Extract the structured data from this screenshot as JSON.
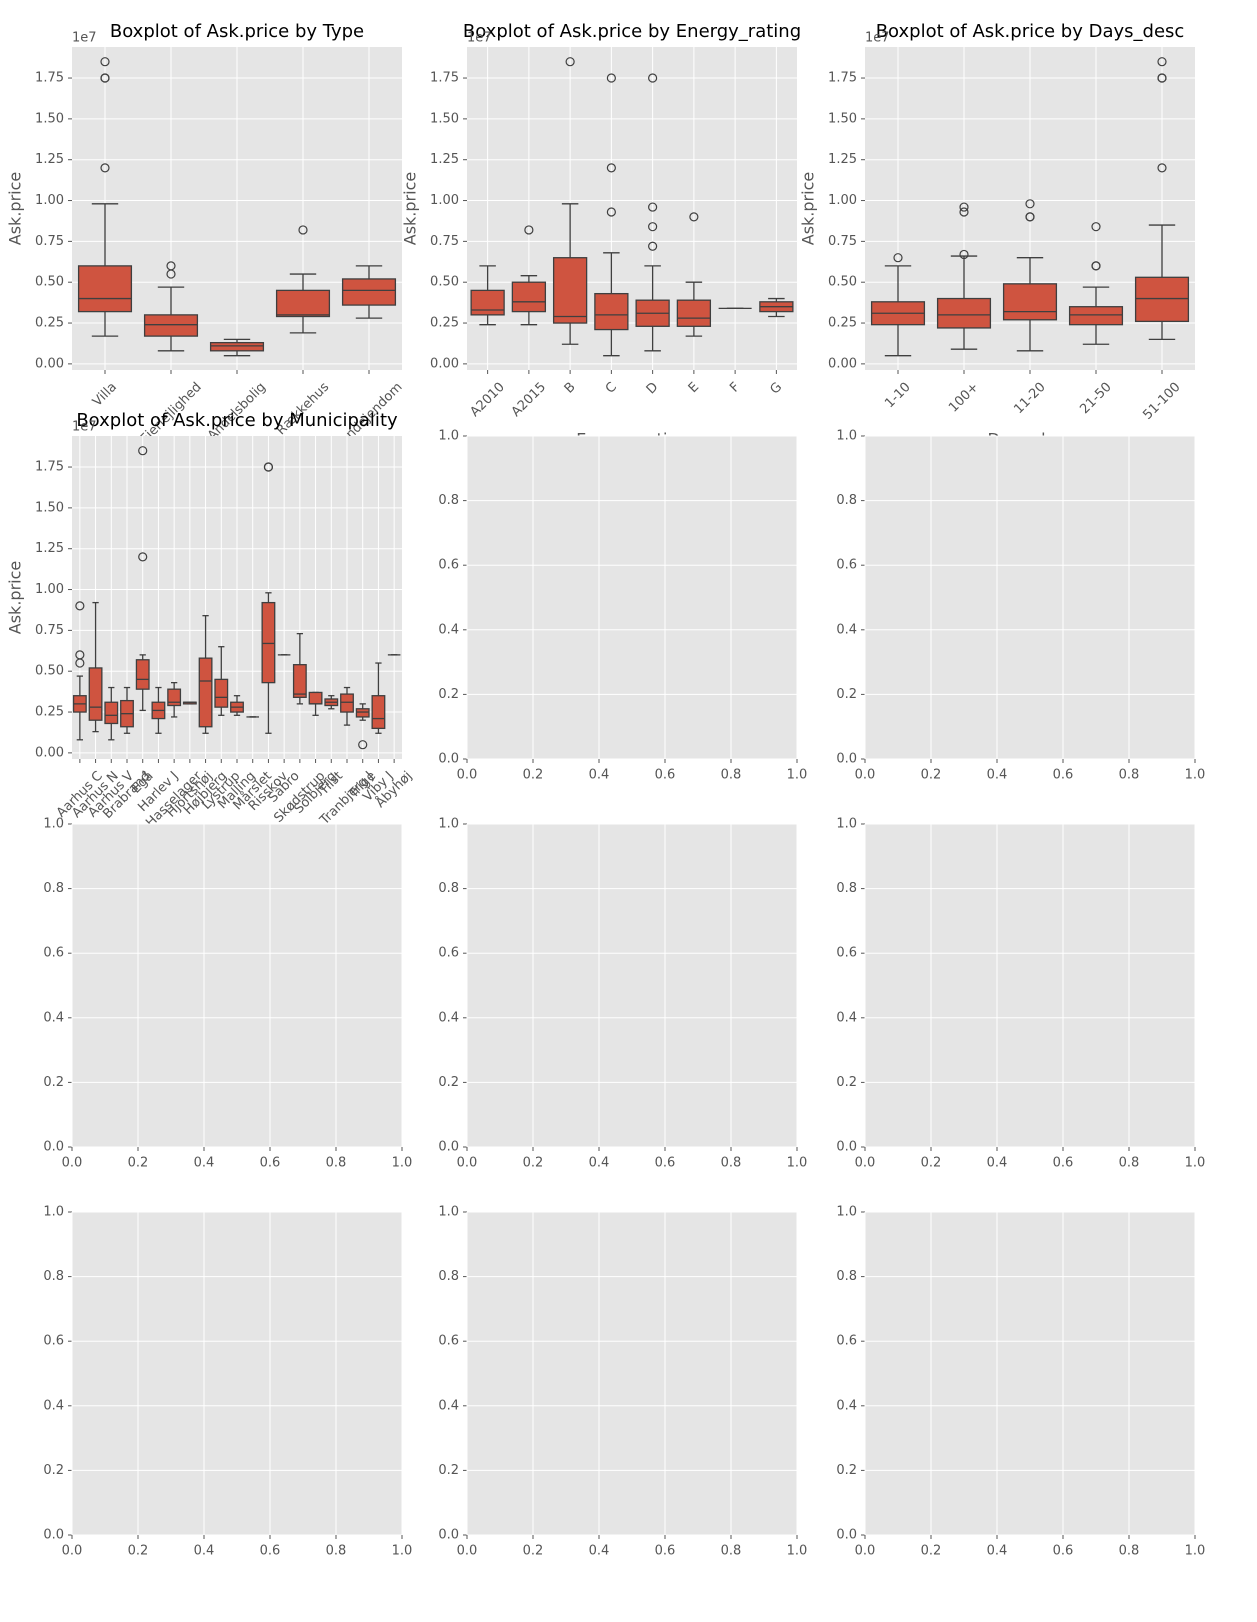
{
  "chart_data": [
    {
      "type": "box",
      "title": "Boxplot of Ask.price by Type",
      "ylabel": "Ask.price",
      "y_offset_label": "1e7",
      "color": "#cf5440",
      "grid": true,
      "categories": [
        "Villa",
        "Ejerlejlighed",
        "Andelsbolig",
        "Rækkehus",
        "Landejendom"
      ],
      "whisker_low": [
        0.17,
        0.08,
        0.05,
        0.19,
        0.28
      ],
      "q1": [
        0.32,
        0.17,
        0.08,
        0.29,
        0.36
      ],
      "median": [
        0.4,
        0.24,
        0.11,
        0.3,
        0.45
      ],
      "q3": [
        0.6,
        0.3,
        0.13,
        0.45,
        0.52
      ],
      "whisker_high": [
        0.98,
        0.47,
        0.15,
        0.55,
        0.6
      ],
      "outliers": [
        [
          1.85,
          1.75,
          1.75,
          1.2
        ],
        [
          0.6,
          0.55
        ],
        [],
        [
          0.82
        ],
        []
      ],
      "ylim": [
        -0.0375,
        1.94
      ],
      "yticks": [
        {
          "value": 0,
          "label": "0.00"
        },
        0.25,
        {
          "value": 0.5,
          "label": "0.50"
        },
        0.75,
        {
          "value": 1,
          "label": "1.00"
        },
        1.25,
        {
          "value": 1.5,
          "label": "1.50"
        },
        1.75
      ]
    },
    {
      "type": "box",
      "title": "Boxplot of Ask.price by Energy_rating",
      "xlabel": "Energy_rating",
      "ylabel": "Ask.price",
      "y_offset_label": "1e7",
      "color": "#cf5440",
      "grid": true,
      "categories": [
        "A2010",
        "A2015",
        "B",
        "C",
        "D",
        "E",
        "F",
        "G"
      ],
      "whisker_low": [
        0.24,
        0.24,
        0.12,
        0.05,
        0.08,
        0.17,
        0.34,
        0.29
      ],
      "q1": [
        0.3,
        0.32,
        0.25,
        0.21,
        0.23,
        0.23,
        0.34,
        0.32
      ],
      "median": [
        0.33,
        0.38,
        0.29,
        0.3,
        0.31,
        0.28,
        0.34,
        0.35
      ],
      "q3": [
        0.45,
        0.5,
        0.65,
        0.43,
        0.39,
        0.39,
        0.34,
        0.38
      ],
      "whisker_high": [
        0.6,
        0.54,
        0.98,
        0.68,
        0.6,
        0.5,
        0.34,
        0.4
      ],
      "outliers": [
        [],
        [
          0.82
        ],
        [
          1.85
        ],
        [
          1.75,
          1.2,
          0.93
        ],
        [
          1.75,
          0.96,
          0.84,
          0.72
        ],
        [
          0.9
        ],
        [],
        []
      ],
      "ylim": [
        -0.0375,
        1.94
      ],
      "yticks": [
        {
          "value": 0,
          "label": "0.00"
        },
        0.25,
        {
          "value": 0.5,
          "label": "0.50"
        },
        0.75,
        {
          "value": 1,
          "label": "1.00"
        },
        1.25,
        {
          "value": 1.5,
          "label": "1.50"
        },
        1.75
      ]
    },
    {
      "type": "box",
      "title": "Boxplot of Ask.price by Days_desc",
      "xlabel": "Days_desc",
      "ylabel": "Ask.price",
      "y_offset_label": "1e7",
      "color": "#cf5440",
      "grid": true,
      "categories": [
        "1-10",
        "100+",
        "11-20",
        "21-50",
        "51-100"
      ],
      "whisker_low": [
        0.05,
        0.09,
        0.08,
        0.12,
        0.15
      ],
      "q1": [
        0.24,
        0.22,
        0.27,
        0.24,
        0.26
      ],
      "median": [
        0.31,
        0.3,
        0.32,
        0.3,
        0.4
      ],
      "q3": [
        0.38,
        0.4,
        0.49,
        0.35,
        0.53
      ],
      "whisker_high": [
        0.6,
        0.66,
        0.65,
        0.47,
        0.85
      ],
      "outliers": [
        [
          0.65
        ],
        [
          0.96,
          0.93,
          0.67
        ],
        [
          0.98,
          0.9,
          0.9
        ],
        [
          0.84,
          0.6,
          0.6
        ],
        [
          1.85,
          1.75,
          1.75,
          1.2
        ]
      ],
      "ylim": [
        -0.0375,
        1.94
      ],
      "yticks": [
        {
          "value": 0,
          "label": "0.00"
        },
        0.25,
        {
          "value": 0.5,
          "label": "0.50"
        },
        0.75,
        {
          "value": 1,
          "label": "1.00"
        },
        1.25,
        {
          "value": 1.5,
          "label": "1.50"
        },
        1.75
      ]
    },
    {
      "type": "box",
      "title": "Boxplot of Ask.price by Municipality",
      "ylabel": "Ask.price",
      "y_offset_label": "1e7",
      "color": "#cf5440",
      "grid": true,
      "categories": [
        "Aarhus C",
        "Aarhus N",
        "Aarhus V",
        "Brabrand",
        "Egå",
        "Harlev J",
        "Hasselager",
        "Hjortshøj",
        "Højbjerg",
        "Lystrup",
        "Malling",
        "Mårslet",
        "Risskov",
        "Sabro",
        "Skødstrup",
        "Solbjerg",
        "Tilst",
        "Tranbjerg J",
        "Trige",
        "Viby J",
        "Åbyhøj"
      ],
      "whisker_low": [
        0.08,
        0.13,
        0.08,
        0.12,
        0.26,
        0.12,
        0.22,
        0.3,
        0.12,
        0.23,
        0.23,
        0.22,
        0.12,
        0.6,
        0.3,
        0.23,
        0.27,
        0.17,
        0.2,
        0.12,
        0.6
      ],
      "q1": [
        0.25,
        0.2,
        0.18,
        0.16,
        0.39,
        0.21,
        0.29,
        0.3,
        0.16,
        0.28,
        0.25,
        0.22,
        0.43,
        0.6,
        0.34,
        0.3,
        0.29,
        0.25,
        0.22,
        0.15,
        0.6
      ],
      "median": [
        0.3,
        0.28,
        0.23,
        0.24,
        0.45,
        0.26,
        0.31,
        0.31,
        0.44,
        0.34,
        0.28,
        0.22,
        0.67,
        0.6,
        0.36,
        0.3,
        0.31,
        0.31,
        0.25,
        0.21,
        0.6
      ],
      "q3": [
        0.35,
        0.52,
        0.31,
        0.32,
        0.57,
        0.31,
        0.39,
        0.31,
        0.58,
        0.45,
        0.31,
        0.22,
        0.92,
        0.6,
        0.54,
        0.37,
        0.33,
        0.36,
        0.27,
        0.35,
        0.6
      ],
      "whisker_high": [
        0.47,
        0.92,
        0.4,
        0.4,
        0.6,
        0.4,
        0.43,
        0.31,
        0.84,
        0.65,
        0.35,
        0.22,
        0.98,
        0.6,
        0.73,
        0.37,
        0.35,
        0.4,
        0.3,
        0.55,
        0.6
      ],
      "outliers": [
        [
          0.9,
          0.6,
          0.55
        ],
        [],
        [],
        [],
        [
          1.85,
          1.2
        ],
        [],
        [],
        [],
        [],
        [],
        [],
        [],
        [
          1.75,
          1.75
        ],
        [],
        [],
        [],
        [],
        [],
        [
          0.05
        ],
        [],
        []
      ],
      "ylim": [
        -0.0375,
        1.94
      ],
      "yticks": [
        {
          "value": 0,
          "label": "0.00"
        },
        0.25,
        {
          "value": 0.5,
          "label": "0.50"
        },
        0.75,
        {
          "value": 1,
          "label": "1.00"
        },
        1.25,
        {
          "value": 1.5,
          "label": "1.50"
        },
        1.75
      ]
    },
    {
      "type": "empty",
      "grid": true,
      "xlim": [
        0,
        1
      ],
      "ylim": [
        0,
        1
      ],
      "xticks": [
        {
          "value": 0,
          "label": "0.0"
        },
        0.2,
        0.4,
        0.6,
        0.8,
        {
          "value": 1,
          "label": "1.0"
        }
      ],
      "yticks": [
        {
          "value": 0,
          "label": "0.0"
        },
        0.2,
        0.4,
        0.6,
        0.8,
        {
          "value": 1,
          "label": "1.0"
        }
      ]
    },
    {
      "type": "empty",
      "grid": true,
      "xlim": [
        0,
        1
      ],
      "ylim": [
        0,
        1
      ],
      "xticks": [
        {
          "value": 0,
          "label": "0.0"
        },
        0.2,
        0.4,
        0.6,
        0.8,
        {
          "value": 1,
          "label": "1.0"
        }
      ],
      "yticks": [
        {
          "value": 0,
          "label": "0.0"
        },
        0.2,
        0.4,
        0.6,
        0.8,
        {
          "value": 1,
          "label": "1.0"
        }
      ]
    },
    {
      "type": "empty",
      "grid": true,
      "xlim": [
        0,
        1
      ],
      "ylim": [
        0,
        1
      ],
      "xticks": [
        {
          "value": 0,
          "label": "0.0"
        },
        0.2,
        0.4,
        0.6,
        0.8,
        {
          "value": 1,
          "label": "1.0"
        }
      ],
      "yticks": [
        {
          "value": 0,
          "label": "0.0"
        },
        0.2,
        0.4,
        0.6,
        0.8,
        {
          "value": 1,
          "label": "1.0"
        }
      ]
    },
    {
      "type": "empty",
      "grid": true,
      "xlim": [
        0,
        1
      ],
      "ylim": [
        0,
        1
      ],
      "xticks": [
        {
          "value": 0,
          "label": "0.0"
        },
        0.2,
        0.4,
        0.6,
        0.8,
        {
          "value": 1,
          "label": "1.0"
        }
      ],
      "yticks": [
        {
          "value": 0,
          "label": "0.0"
        },
        0.2,
        0.4,
        0.6,
        0.8,
        {
          "value": 1,
          "label": "1.0"
        }
      ]
    },
    {
      "type": "empty",
      "grid": true,
      "xlim": [
        0,
        1
      ],
      "ylim": [
        0,
        1
      ],
      "xticks": [
        {
          "value": 0,
          "label": "0.0"
        },
        0.2,
        0.4,
        0.6,
        0.8,
        {
          "value": 1,
          "label": "1.0"
        }
      ],
      "yticks": [
        {
          "value": 0,
          "label": "0.0"
        },
        0.2,
        0.4,
        0.6,
        0.8,
        {
          "value": 1,
          "label": "1.0"
        }
      ]
    },
    {
      "type": "empty",
      "grid": true,
      "xlim": [
        0,
        1
      ],
      "ylim": [
        0,
        1
      ],
      "xticks": [
        {
          "value": 0,
          "label": "0.0"
        },
        0.2,
        0.4,
        0.6,
        0.8,
        {
          "value": 1,
          "label": "1.0"
        }
      ],
      "yticks": [
        {
          "value": 0,
          "label": "0.0"
        },
        0.2,
        0.4,
        0.6,
        0.8,
        {
          "value": 1,
          "label": "1.0"
        }
      ]
    },
    {
      "type": "empty",
      "grid": true,
      "xlim": [
        0,
        1
      ],
      "ylim": [
        0,
        1
      ],
      "xticks": [
        {
          "value": 0,
          "label": "0.0"
        },
        0.2,
        0.4,
        0.6,
        0.8,
        {
          "value": 1,
          "label": "1.0"
        }
      ],
      "yticks": [
        {
          "value": 0,
          "label": "0.0"
        },
        0.2,
        0.4,
        0.6,
        0.8,
        {
          "value": 1,
          "label": "1.0"
        }
      ]
    },
    {
      "type": "empty",
      "grid": true,
      "xlim": [
        0,
        1
      ],
      "ylim": [
        0,
        1
      ],
      "xticks": [
        {
          "value": 0,
          "label": "0.0"
        },
        0.2,
        0.4,
        0.6,
        0.8,
        {
          "value": 1,
          "label": "1.0"
        }
      ],
      "yticks": [
        {
          "value": 0,
          "label": "0.0"
        },
        0.2,
        0.4,
        0.6,
        0.8,
        {
          "value": 1,
          "label": "1.0"
        }
      ]
    }
  ]
}
